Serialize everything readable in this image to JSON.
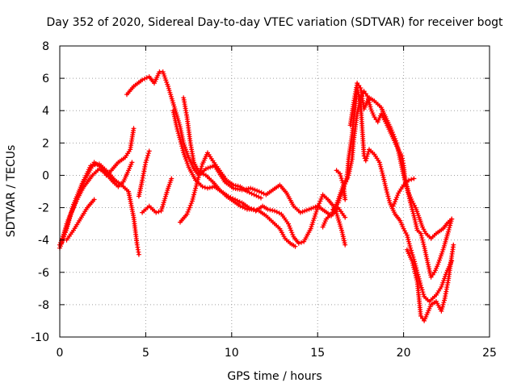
{
  "chart_data": {
    "type": "scatter",
    "title": "Day 352 of 2020, Sidereal Day-to-day VTEC variation (SDTVAR) for receiver bogt",
    "xlabel": "GPS time / hours",
    "ylabel": "SDTVAR / TECUs",
    "xlim": [
      0,
      25
    ],
    "ylim": [
      -10,
      8
    ],
    "xticks": [
      0,
      5,
      10,
      15,
      20,
      25
    ],
    "xtick_labels": [
      "0",
      "5",
      "10",
      "15",
      "20",
      "25"
    ],
    "yticks": [
      -10,
      -8,
      -6,
      -4,
      -2,
      0,
      2,
      4,
      6,
      8
    ],
    "ytick_labels": [
      "-10",
      "-8",
      "-6",
      "-4",
      "-2",
      "0",
      "2",
      "4",
      "6",
      "8"
    ],
    "grid": true,
    "marker": "+",
    "color": "#ff0000",
    "series": [
      {
        "name": "trace-1",
        "points": [
          [
            0,
            -4.3
          ],
          [
            0.3,
            -3.5
          ],
          [
            0.6,
            -2.5
          ],
          [
            1.0,
            -1.5
          ],
          [
            1.3,
            -0.6
          ],
          [
            1.7,
            0.2
          ],
          [
            2.0,
            0.8
          ],
          [
            2.4,
            0.5
          ],
          [
            2.7,
            0.0
          ],
          [
            3.0,
            0.3
          ],
          [
            3.4,
            0.8
          ],
          [
            3.8,
            1.1
          ],
          [
            4.1,
            1.6
          ],
          [
            4.3,
            2.9
          ]
        ]
      },
      {
        "name": "trace-2",
        "points": [
          [
            0,
            -4.5
          ],
          [
            0.4,
            -3.3
          ],
          [
            0.8,
            -1.8
          ],
          [
            1.3,
            -0.5
          ],
          [
            1.8,
            0.6
          ],
          [
            2.3,
            0.7
          ],
          [
            2.8,
            0.2
          ],
          [
            3.2,
            -0.3
          ],
          [
            3.6,
            -0.6
          ],
          [
            4.0,
            -1.0
          ],
          [
            4.3,
            -2.6
          ],
          [
            4.5,
            -4.3
          ],
          [
            4.6,
            -4.9
          ]
        ]
      },
      {
        "name": "trace-3",
        "points": [
          [
            0.1,
            -4.2
          ],
          [
            0.4,
            -3.0
          ],
          [
            0.9,
            -1.7
          ],
          [
            1.4,
            -0.7
          ],
          [
            1.9,
            0.0
          ],
          [
            2.3,
            0.4
          ],
          [
            2.7,
            0.1
          ],
          [
            3.1,
            -0.4
          ],
          [
            3.4,
            -0.7
          ],
          [
            3.7,
            -0.4
          ],
          [
            4.0,
            0.3
          ],
          [
            4.2,
            0.8
          ]
        ]
      },
      {
        "name": "trace-4",
        "points": [
          [
            0.4,
            -4.0
          ],
          [
            0.8,
            -3.4
          ],
          [
            1.2,
            -2.7
          ],
          [
            1.6,
            -2.0
          ],
          [
            2.0,
            -1.5
          ]
        ]
      },
      {
        "name": "trace-5",
        "points": [
          [
            3.9,
            5.0
          ],
          [
            4.3,
            5.5
          ],
          [
            4.8,
            5.9
          ],
          [
            5.2,
            6.1
          ],
          [
            5.5,
            5.7
          ],
          [
            5.8,
            6.4
          ],
          [
            6.0,
            6.4
          ],
          [
            6.3,
            5.5
          ],
          [
            6.7,
            4.1
          ],
          [
            7.0,
            3.0
          ],
          [
            7.2,
            2.0
          ],
          [
            7.5,
            1.1
          ],
          [
            7.8,
            0.4
          ],
          [
            8.1,
            0.0
          ],
          [
            8.5,
            0.4
          ],
          [
            9.0,
            0.6
          ],
          [
            9.6,
            -0.4
          ],
          [
            10.1,
            -0.8
          ],
          [
            10.6,
            -0.9
          ],
          [
            11.1,
            -0.8
          ],
          [
            11.6,
            -1.0
          ],
          [
            12.0,
            -1.2
          ],
          [
            12.4,
            -0.9
          ],
          [
            12.8,
            -0.6
          ],
          [
            13.2,
            -1.1
          ],
          [
            13.6,
            -1.9
          ],
          [
            14.0,
            -2.3
          ],
          [
            14.5,
            -2.1
          ],
          [
            15.0,
            -1.9
          ],
          [
            15.4,
            -2.2
          ],
          [
            15.8,
            -2.5
          ],
          [
            16.2,
            -2.0
          ],
          [
            16.6,
            -2.6
          ]
        ]
      },
      {
        "name": "trace-6",
        "points": [
          [
            4.6,
            -1.3
          ],
          [
            4.8,
            -0.3
          ],
          [
            5.0,
            0.8
          ],
          [
            5.2,
            1.5
          ]
        ]
      },
      {
        "name": "trace-7",
        "points": [
          [
            4.8,
            -2.3
          ],
          [
            5.2,
            -1.9
          ],
          [
            5.6,
            -2.3
          ],
          [
            5.9,
            -2.2
          ],
          [
            6.3,
            -0.8
          ],
          [
            6.5,
            -0.2
          ]
        ]
      },
      {
        "name": "trace-8",
        "points": [
          [
            6.6,
            4.0
          ],
          [
            6.8,
            3.0
          ],
          [
            7.0,
            2.2
          ],
          [
            7.2,
            1.4
          ],
          [
            7.5,
            0.5
          ],
          [
            7.9,
            -0.3
          ],
          [
            8.3,
            -0.7
          ],
          [
            8.6,
            -0.8
          ],
          [
            9.0,
            -0.7
          ],
          [
            9.4,
            -1.0
          ],
          [
            9.8,
            -1.3
          ],
          [
            10.2,
            -1.5
          ],
          [
            10.6,
            -1.7
          ],
          [
            11.0,
            -2.0
          ],
          [
            11.4,
            -2.2
          ],
          [
            11.8,
            -1.9
          ],
          [
            12.1,
            -2.1
          ],
          [
            12.5,
            -2.2
          ],
          [
            12.9,
            -2.4
          ],
          [
            13.3,
            -3.0
          ],
          [
            13.6,
            -3.8
          ],
          [
            13.9,
            -4.2
          ],
          [
            14.2,
            -4.1
          ],
          [
            14.6,
            -3.3
          ],
          [
            15.0,
            -2.0
          ],
          [
            15.3,
            -1.2
          ],
          [
            15.6,
            -1.5
          ],
          [
            16.0,
            -2.0
          ],
          [
            16.4,
            -3.4
          ],
          [
            16.6,
            -4.3
          ]
        ]
      },
      {
        "name": "trace-9",
        "points": [
          [
            7.0,
            -2.9
          ],
          [
            7.4,
            -2.4
          ],
          [
            7.7,
            -1.6
          ],
          [
            7.9,
            -0.8
          ],
          [
            8.1,
            0.0
          ],
          [
            8.3,
            0.7
          ],
          [
            8.6,
            1.4
          ],
          [
            8.9,
            0.9
          ],
          [
            9.3,
            0.3
          ],
          [
            9.7,
            -0.3
          ],
          [
            10.1,
            -0.6
          ],
          [
            10.5,
            -0.7
          ],
          [
            10.9,
            -1.0
          ],
          [
            11.3,
            -1.2
          ],
          [
            11.7,
            -1.4
          ]
        ]
      },
      {
        "name": "trace-10",
        "points": [
          [
            7.2,
            4.8
          ],
          [
            7.4,
            3.6
          ],
          [
            7.6,
            2.0
          ],
          [
            7.8,
            0.8
          ],
          [
            8.1,
            0.2
          ],
          [
            8.5,
            0.0
          ],
          [
            8.9,
            -0.4
          ],
          [
            9.3,
            -0.9
          ],
          [
            9.7,
            -1.3
          ],
          [
            10.1,
            -1.6
          ],
          [
            10.5,
            -1.9
          ],
          [
            10.9,
            -2.1
          ],
          [
            11.3,
            -2.1
          ],
          [
            11.6,
            -2.2
          ],
          [
            12.0,
            -2.5
          ],
          [
            12.4,
            -2.9
          ],
          [
            12.8,
            -3.3
          ],
          [
            13.1,
            -3.9
          ],
          [
            13.4,
            -4.2
          ],
          [
            13.7,
            -4.4
          ]
        ]
      },
      {
        "name": "trace-11",
        "points": [
          [
            15.3,
            -3.2
          ],
          [
            15.5,
            -2.7
          ],
          [
            15.8,
            -2.4
          ],
          [
            16.1,
            -1.8
          ],
          [
            16.3,
            -1.2
          ],
          [
            16.5,
            -0.6
          ],
          [
            16.7,
            -0.2
          ],
          [
            16.8,
            1.0
          ],
          [
            17.0,
            2.5
          ],
          [
            17.2,
            4.3
          ],
          [
            17.3,
            5.4
          ],
          [
            17.5,
            4.5
          ],
          [
            17.6,
            2.8
          ],
          [
            17.7,
            1.2
          ],
          [
            17.8,
            0.9
          ],
          [
            18.0,
            1.6
          ],
          [
            18.3,
            1.3
          ],
          [
            18.6,
            0.8
          ],
          [
            18.8,
            0.0
          ],
          [
            19.0,
            -0.9
          ],
          [
            19.2,
            -1.7
          ],
          [
            19.5,
            -2.4
          ],
          [
            19.8,
            -2.8
          ],
          [
            20.0,
            -3.3
          ],
          [
            20.2,
            -3.7
          ],
          [
            20.4,
            -4.5
          ],
          [
            20.6,
            -5.2
          ],
          [
            20.8,
            -6.0
          ],
          [
            21.0,
            -6.8
          ],
          [
            21.2,
            -7.5
          ],
          [
            21.5,
            -7.8
          ],
          [
            21.9,
            -7.4
          ],
          [
            22.2,
            -6.9
          ],
          [
            22.5,
            -6.0
          ],
          [
            22.8,
            -5.3
          ]
        ]
      },
      {
        "name": "trace-12",
        "points": [
          [
            15.9,
            -2.1
          ],
          [
            16.2,
            -1.7
          ],
          [
            16.5,
            -0.8
          ],
          [
            16.8,
            0.0
          ],
          [
            17.0,
            1.0
          ],
          [
            17.1,
            2.2
          ],
          [
            17.3,
            3.8
          ],
          [
            17.5,
            4.8
          ],
          [
            17.7,
            5.2
          ],
          [
            17.9,
            4.9
          ],
          [
            18.1,
            4.1
          ],
          [
            18.3,
            3.6
          ],
          [
            18.5,
            3.3
          ],
          [
            18.7,
            3.8
          ],
          [
            19.0,
            3.2
          ],
          [
            19.3,
            2.5
          ],
          [
            19.6,
            1.8
          ],
          [
            19.9,
            1.2
          ],
          [
            20.0,
            0.6
          ],
          [
            20.1,
            -0.3
          ],
          [
            20.3,
            -1.1
          ],
          [
            20.5,
            -1.6
          ],
          [
            20.7,
            -2.0
          ],
          [
            20.9,
            -2.6
          ],
          [
            21.1,
            -3.2
          ],
          [
            21.3,
            -3.6
          ],
          [
            21.6,
            -3.9
          ],
          [
            21.9,
            -3.6
          ],
          [
            22.3,
            -3.3
          ],
          [
            22.6,
            -2.9
          ],
          [
            22.8,
            -2.7
          ]
        ]
      },
      {
        "name": "trace-13",
        "points": [
          [
            16.9,
            3.1
          ],
          [
            17.1,
            4.5
          ],
          [
            17.3,
            5.7
          ],
          [
            17.5,
            5.4
          ],
          [
            17.7,
            4.1
          ],
          [
            18.0,
            4.8
          ],
          [
            18.3,
            4.6
          ],
          [
            18.7,
            4.2
          ],
          [
            19.0,
            3.5
          ],
          [
            19.3,
            2.8
          ],
          [
            19.6,
            2.0
          ],
          [
            19.8,
            1.0
          ],
          [
            20.0,
            0.0
          ],
          [
            20.2,
            -0.8
          ],
          [
            20.4,
            -1.7
          ],
          [
            20.6,
            -2.5
          ],
          [
            20.8,
            -3.4
          ],
          [
            21.0,
            -3.6
          ],
          [
            21.2,
            -4.4
          ],
          [
            21.4,
            -5.4
          ],
          [
            21.6,
            -6.3
          ],
          [
            21.8,
            -6.0
          ],
          [
            22.0,
            -5.5
          ],
          [
            22.3,
            -4.6
          ],
          [
            22.6,
            -3.5
          ],
          [
            22.8,
            -2.7
          ]
        ]
      },
      {
        "name": "trace-14",
        "points": [
          [
            20.2,
            -4.6
          ],
          [
            20.5,
            -5.3
          ],
          [
            20.8,
            -6.6
          ],
          [
            21.0,
            -8.7
          ],
          [
            21.2,
            -9.0
          ],
          [
            21.4,
            -8.5
          ],
          [
            21.6,
            -8.0
          ],
          [
            21.9,
            -7.8
          ],
          [
            22.2,
            -8.4
          ],
          [
            22.4,
            -7.6
          ],
          [
            22.6,
            -6.5
          ],
          [
            22.8,
            -5.0
          ],
          [
            22.9,
            -4.3
          ]
        ]
      },
      {
        "name": "trace-15",
        "points": [
          [
            16.1,
            0.3
          ],
          [
            16.3,
            0.1
          ],
          [
            16.5,
            -0.6
          ],
          [
            16.6,
            -1.5
          ]
        ]
      },
      {
        "name": "trace-16",
        "points": [
          [
            19.4,
            -1.9
          ],
          [
            19.7,
            -1.1
          ],
          [
            20.0,
            -0.6
          ],
          [
            20.3,
            -0.3
          ],
          [
            20.6,
            -0.2
          ]
        ]
      }
    ]
  }
}
